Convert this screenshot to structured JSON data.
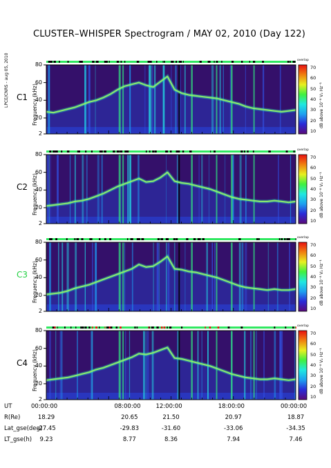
{
  "header": {
    "title": "CLUSTER–WHISPER Spectrogram / MAY 02, 2010 (Day 122)",
    "side_credit": "LPCE/CNRS - aug 05, 2010"
  },
  "colorbar": {
    "overlay_label": "overlap",
    "unit_label": "dB above 10⁻⁸ V₂ Hz⁻¹",
    "ticks": [
      "70",
      "60",
      "50",
      "40",
      "30",
      "20",
      "10"
    ],
    "colors": [
      "#5a0a7a",
      "#2a2ad8",
      "#1ea0f0",
      "#20e8e0",
      "#40f040",
      "#e8f020",
      "#f08010",
      "#e81010"
    ]
  },
  "chart_data": {
    "type": "heatmap",
    "title": "CLUSTER–WHISPER Spectrogram / MAY 02, 2010 (Day 122)",
    "ylabel": "Frequency (kHz)",
    "ylim": [
      2,
      80
    ],
    "yticks": [
      "80",
      "60",
      "40",
      "20",
      "2"
    ],
    "zlim": [
      10,
      70
    ],
    "xticks": [
      "00:00:00",
      "08:00:00",
      "12:00:00",
      "18:00:00",
      "00:00:00"
    ],
    "panels": [
      {
        "name": "C1",
        "color": "#000000",
        "trace_khz": [
          27,
          26,
          28,
          30,
          32,
          35,
          38,
          40,
          43,
          47,
          52,
          56,
          58,
          60,
          57,
          55,
          61,
          67,
          52,
          48,
          46,
          45,
          44,
          43,
          42,
          40,
          38,
          36,
          33,
          31,
          30,
          29,
          28,
          27,
          28,
          29
        ]
      },
      {
        "name": "C2",
        "color": "#000000",
        "trace_khz": [
          22,
          23,
          24,
          25,
          27,
          28,
          30,
          33,
          36,
          40,
          44,
          47,
          50,
          53,
          49,
          50,
          54,
          60,
          50,
          48,
          47,
          45,
          43,
          41,
          38,
          35,
          32,
          30,
          29,
          28,
          27,
          27,
          28,
          27,
          26,
          27
        ]
      },
      {
        "name": "C3",
        "color": "#20d040",
        "trace_khz": [
          21,
          22,
          23,
          25,
          28,
          30,
          32,
          35,
          38,
          41,
          44,
          47,
          50,
          55,
          52,
          53,
          58,
          64,
          50,
          49,
          47,
          46,
          44,
          42,
          40,
          37,
          34,
          31,
          29,
          28,
          27,
          26,
          27,
          26,
          26,
          27
        ]
      },
      {
        "name": "C4",
        "color": "#000000",
        "trace_khz": [
          24,
          25,
          26,
          27,
          29,
          31,
          33,
          36,
          38,
          41,
          44,
          47,
          50,
          54,
          53,
          55,
          58,
          61,
          49,
          48,
          46,
          44,
          42,
          40,
          37,
          34,
          31,
          29,
          27,
          26,
          25,
          25,
          26,
          25,
          24,
          25
        ]
      }
    ]
  },
  "ephemeris": {
    "rows": [
      {
        "name": "UT",
        "values": []
      },
      {
        "name": "R(Re)",
        "values": [
          "18.29",
          "20.65",
          "21.50",
          "20.97",
          "18.87"
        ]
      },
      {
        "name": "Lat_gse(deg)",
        "values": [
          "-27.45",
          "-29.83",
          "-31.60",
          "-33.06",
          "-34.35"
        ]
      },
      {
        "name": "LT_gse(h)",
        "values": [
          "9.23",
          "8.77",
          "8.36",
          "7.94",
          "7.46"
        ]
      }
    ]
  }
}
